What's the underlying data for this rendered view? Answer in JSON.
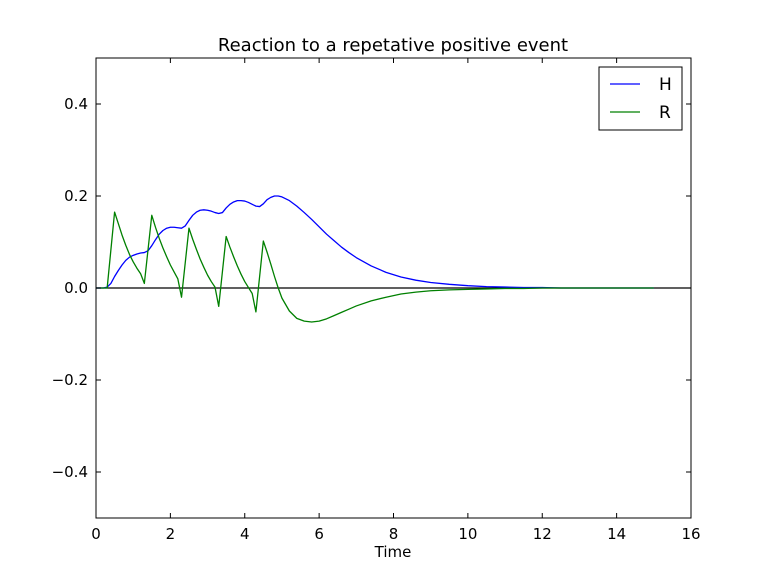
{
  "chart_data": {
    "type": "line",
    "title": "Reaction to a repetative positive event",
    "xlabel": "Time",
    "ylabel": "",
    "xlim": [
      0,
      16
    ],
    "ylim": [
      -0.5,
      0.5
    ],
    "xticks": [
      0,
      2,
      4,
      6,
      8,
      10,
      12,
      14,
      16
    ],
    "yticks": [
      -0.4,
      -0.2,
      0.0,
      0.2,
      0.4
    ],
    "xtick_labels": [
      "0",
      "2",
      "4",
      "6",
      "8",
      "10",
      "12",
      "14",
      "16"
    ],
    "ytick_labels": [
      "−0.4",
      "−0.2",
      "0.0",
      "0.2",
      "0.4"
    ],
    "legend_position": "top-right",
    "reference_line": {
      "y": 0,
      "color": "#000000"
    },
    "series": [
      {
        "name": "H",
        "color": "#0000ff",
        "x": [
          0,
          0.2,
          0.3,
          0.4,
          0.5,
          0.6,
          0.7,
          0.8,
          0.9,
          1.0,
          1.1,
          1.2,
          1.3,
          1.4,
          1.5,
          1.6,
          1.7,
          1.8,
          1.9,
          2.0,
          2.1,
          2.2,
          2.3,
          2.4,
          2.5,
          2.6,
          2.7,
          2.8,
          2.9,
          3.0,
          3.1,
          3.2,
          3.3,
          3.4,
          3.5,
          3.6,
          3.7,
          3.8,
          3.9,
          4.0,
          4.1,
          4.2,
          4.3,
          4.4,
          4.5,
          4.6,
          4.7,
          4.8,
          4.9,
          5.0,
          5.2,
          5.4,
          5.6,
          5.8,
          6.0,
          6.2,
          6.4,
          6.6,
          6.8,
          7.0,
          7.4,
          7.8,
          8.2,
          8.6,
          9.0,
          9.5,
          10.0,
          10.5,
          11.0,
          11.5,
          12.0,
          12.5,
          13.0,
          14.0,
          15.0
        ],
        "y": [
          0.0,
          0.0,
          0.002,
          0.01,
          0.025,
          0.038,
          0.05,
          0.06,
          0.067,
          0.071,
          0.074,
          0.076,
          0.077,
          0.081,
          0.092,
          0.105,
          0.117,
          0.125,
          0.13,
          0.132,
          0.132,
          0.131,
          0.13,
          0.135,
          0.147,
          0.158,
          0.165,
          0.169,
          0.17,
          0.169,
          0.167,
          0.164,
          0.162,
          0.164,
          0.174,
          0.182,
          0.187,
          0.19,
          0.19,
          0.189,
          0.186,
          0.182,
          0.178,
          0.177,
          0.183,
          0.192,
          0.197,
          0.2,
          0.2,
          0.198,
          0.19,
          0.178,
          0.164,
          0.149,
          0.133,
          0.117,
          0.103,
          0.089,
          0.077,
          0.066,
          0.048,
          0.034,
          0.024,
          0.017,
          0.012,
          0.008,
          0.005,
          0.003,
          0.002,
          0.001,
          0.001,
          0.0,
          0.0,
          0.0,
          0.0
        ]
      },
      {
        "name": "R",
        "color": "#008000",
        "x": [
          0,
          0.3,
          0.5,
          0.6,
          0.7,
          0.8,
          0.9,
          1.0,
          1.1,
          1.2,
          1.3,
          1.5,
          1.6,
          1.7,
          1.8,
          1.9,
          2.0,
          2.1,
          2.2,
          2.3,
          2.5,
          2.6,
          2.7,
          2.8,
          2.9,
          3.0,
          3.1,
          3.2,
          3.3,
          3.5,
          3.6,
          3.7,
          3.8,
          3.9,
          4.0,
          4.1,
          4.2,
          4.3,
          4.5,
          4.6,
          4.7,
          4.8,
          4.9,
          5.0,
          5.2,
          5.4,
          5.6,
          5.8,
          6.0,
          6.2,
          6.4,
          6.6,
          6.8,
          7.0,
          7.4,
          7.8,
          8.2,
          8.6,
          9.0,
          9.5,
          10.0,
          10.5,
          11.0,
          11.5,
          12.0,
          12.5,
          13.0,
          14.0,
          15.0
        ],
        "y": [
          0.0,
          0.0,
          0.165,
          0.14,
          0.115,
          0.093,
          0.073,
          0.057,
          0.043,
          0.031,
          0.01,
          0.158,
          0.132,
          0.108,
          0.087,
          0.068,
          0.05,
          0.035,
          0.02,
          -0.02,
          0.13,
          0.106,
          0.084,
          0.063,
          0.045,
          0.028,
          0.014,
          0.002,
          -0.04,
          0.112,
          0.089,
          0.068,
          0.048,
          0.03,
          0.014,
          0.001,
          -0.012,
          -0.052,
          0.102,
          0.078,
          0.052,
          0.025,
          0.0,
          -0.022,
          -0.05,
          -0.066,
          -0.072,
          -0.074,
          -0.072,
          -0.067,
          -0.06,
          -0.053,
          -0.046,
          -0.039,
          -0.028,
          -0.02,
          -0.013,
          -0.009,
          -0.006,
          -0.004,
          -0.003,
          -0.002,
          -0.001,
          -0.001,
          0.0,
          0.0,
          0.0,
          0.0,
          0.0
        ]
      }
    ]
  }
}
